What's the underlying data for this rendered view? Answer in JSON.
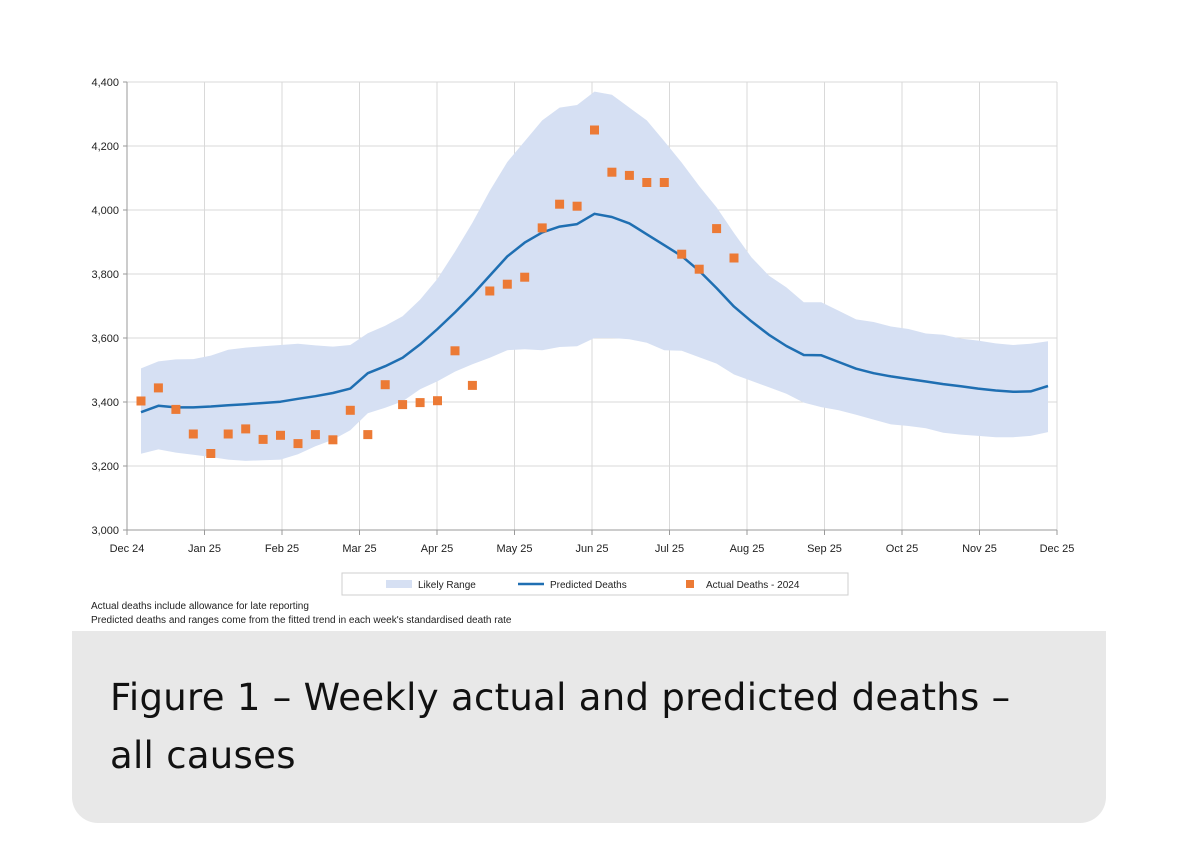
{
  "chart_data": {
    "type": "line",
    "title": "",
    "xlabel": "",
    "ylabel": "",
    "ylim": [
      3000,
      4400
    ],
    "yticks": [
      3000,
      3200,
      3400,
      3600,
      3800,
      4000,
      4200,
      4400
    ],
    "ytick_labels": [
      "3,000",
      "3,200",
      "3,400",
      "3,600",
      "3,800",
      "4,000",
      "4,200",
      "4,400"
    ],
    "xtick_labels": [
      "Dec 24",
      "Jan 25",
      "Feb 25",
      "Mar 25",
      "Apr 25",
      "May 25",
      "Jun 25",
      "Jul 25",
      "Aug 25",
      "Sep 25",
      "Oct 25",
      "Nov 25",
      "Dec 25"
    ],
    "x_unit": "week index (week 0 = first week shown, Dec 24)",
    "grid": true,
    "legend_position": "bottom",
    "legend": [
      "Likely Range",
      "Predicted Deaths",
      "Actual Deaths - 2024"
    ],
    "series": [
      {
        "name": "Predicted Deaths",
        "kind": "line",
        "color": "#1f6fb2",
        "points": [
          [
            0,
            3368
          ],
          [
            1,
            3388
          ],
          [
            2,
            3383
          ],
          [
            3,
            3383
          ],
          [
            4,
            3386
          ],
          [
            5,
            3390
          ],
          [
            6,
            3393
          ],
          [
            7,
            3397
          ],
          [
            8,
            3401
          ],
          [
            9,
            3410
          ],
          [
            10,
            3418
          ],
          [
            11,
            3428
          ],
          [
            12,
            3442
          ],
          [
            13,
            3490
          ],
          [
            14,
            3512
          ],
          [
            15,
            3538
          ],
          [
            16,
            3580
          ],
          [
            17,
            3628
          ],
          [
            18,
            3680
          ],
          [
            19,
            3735
          ],
          [
            20,
            3795
          ],
          [
            21,
            3855
          ],
          [
            22,
            3898
          ],
          [
            23,
            3930
          ],
          [
            24,
            3948
          ],
          [
            25,
            3956
          ],
          [
            26,
            3988
          ],
          [
            27,
            3978
          ],
          [
            28,
            3958
          ],
          [
            29,
            3924
          ],
          [
            30,
            3890
          ],
          [
            31,
            3856
          ],
          [
            32,
            3810
          ],
          [
            33,
            3756
          ],
          [
            34,
            3698
          ],
          [
            35,
            3652
          ],
          [
            36,
            3610
          ],
          [
            37,
            3575
          ],
          [
            38,
            3547
          ],
          [
            39,
            3546
          ],
          [
            40,
            3525
          ],
          [
            41,
            3504
          ],
          [
            42,
            3490
          ],
          [
            43,
            3480
          ],
          [
            44,
            3472
          ],
          [
            45,
            3464
          ],
          [
            46,
            3456
          ],
          [
            47,
            3449
          ],
          [
            48,
            3442
          ],
          [
            49,
            3436
          ],
          [
            50,
            3432
          ],
          [
            51,
            3433
          ],
          [
            52,
            3450
          ]
        ]
      },
      {
        "name": "Actual Deaths - 2024",
        "kind": "marker",
        "color": "#ec7a35",
        "points": [
          [
            0,
            3403
          ],
          [
            1,
            3444
          ],
          [
            2,
            3377
          ],
          [
            3,
            3300
          ],
          [
            4,
            3239
          ],
          [
            5,
            3300
          ],
          [
            6,
            3316
          ],
          [
            7,
            3283
          ],
          [
            8,
            3296
          ],
          [
            9,
            3270
          ],
          [
            10,
            3298
          ],
          [
            11,
            3282
          ],
          [
            12,
            3374
          ],
          [
            13,
            3298
          ],
          [
            14,
            3454
          ],
          [
            15,
            3392
          ],
          [
            16,
            3398
          ],
          [
            17,
            3404
          ],
          [
            18,
            3560
          ],
          [
            19,
            3452
          ],
          [
            20,
            3747
          ],
          [
            21,
            3768
          ],
          [
            22,
            3790
          ],
          [
            23,
            3944
          ],
          [
            24,
            4018
          ],
          [
            25,
            4012
          ],
          [
            26,
            4250
          ],
          [
            27,
            4118
          ],
          [
            28,
            4108
          ],
          [
            29,
            4086
          ],
          [
            30,
            4086
          ],
          [
            31,
            3862
          ],
          [
            32,
            3815
          ],
          [
            33,
            3942
          ],
          [
            34,
            3850
          ]
        ]
      }
    ],
    "band": {
      "name": "Likely Range",
      "color": "#d6e0f3",
      "upper": [
        [
          0,
          3505
        ],
        [
          1,
          3527
        ],
        [
          2,
          3533
        ],
        [
          3,
          3534
        ],
        [
          4,
          3545
        ],
        [
          5,
          3563
        ],
        [
          6,
          3570
        ],
        [
          7,
          3574
        ],
        [
          8,
          3578
        ],
        [
          9,
          3582
        ],
        [
          10,
          3577
        ],
        [
          11,
          3573
        ],
        [
          12,
          3578
        ],
        [
          13,
          3615
        ],
        [
          14,
          3638
        ],
        [
          15,
          3668
        ],
        [
          16,
          3720
        ],
        [
          17,
          3785
        ],
        [
          18,
          3870
        ],
        [
          19,
          3960
        ],
        [
          20,
          4060
        ],
        [
          21,
          4150
        ],
        [
          22,
          4215
        ],
        [
          23,
          4280
        ],
        [
          24,
          4320
        ],
        [
          25,
          4328
        ],
        [
          26,
          4370
        ],
        [
          27,
          4360
        ],
        [
          28,
          4320
        ],
        [
          29,
          4280
        ],
        [
          30,
          4215
        ],
        [
          31,
          4148
        ],
        [
          32,
          4075
        ],
        [
          33,
          4008
        ],
        [
          34,
          3928
        ],
        [
          35,
          3852
        ],
        [
          36,
          3795
        ],
        [
          37,
          3758
        ],
        [
          38,
          3712
        ],
        [
          39,
          3712
        ],
        [
          40,
          3685
        ],
        [
          41,
          3658
        ],
        [
          42,
          3650
        ],
        [
          43,
          3636
        ],
        [
          44,
          3628
        ],
        [
          45,
          3614
        ],
        [
          46,
          3610
        ],
        [
          47,
          3598
        ],
        [
          48,
          3592
        ],
        [
          49,
          3583
        ],
        [
          50,
          3578
        ],
        [
          51,
          3582
        ],
        [
          52,
          3590
        ]
      ],
      "lower": [
        [
          0,
          3238
        ],
        [
          1,
          3252
        ],
        [
          2,
          3242
        ],
        [
          3,
          3235
        ],
        [
          4,
          3228
        ],
        [
          5,
          3220
        ],
        [
          6,
          3216
        ],
        [
          7,
          3218
        ],
        [
          8,
          3220
        ],
        [
          9,
          3237
        ],
        [
          10,
          3262
        ],
        [
          11,
          3282
        ],
        [
          12,
          3312
        ],
        [
          13,
          3365
        ],
        [
          14,
          3382
        ],
        [
          15,
          3402
        ],
        [
          16,
          3440
        ],
        [
          17,
          3465
        ],
        [
          18,
          3495
        ],
        [
          19,
          3518
        ],
        [
          20,
          3538
        ],
        [
          21,
          3562
        ],
        [
          22,
          3565
        ],
        [
          23,
          3562
        ],
        [
          24,
          3572
        ],
        [
          25,
          3574
        ],
        [
          26,
          3600
        ],
        [
          27,
          3600
        ],
        [
          28,
          3596
        ],
        [
          29,
          3585
        ],
        [
          30,
          3562
        ],
        [
          31,
          3560
        ],
        [
          32,
          3540
        ],
        [
          33,
          3520
        ],
        [
          34,
          3486
        ],
        [
          35,
          3466
        ],
        [
          36,
          3446
        ],
        [
          37,
          3426
        ],
        [
          38,
          3398
        ],
        [
          39,
          3384
        ],
        [
          40,
          3374
        ],
        [
          41,
          3360
        ],
        [
          42,
          3345
        ],
        [
          43,
          3330
        ],
        [
          44,
          3325
        ],
        [
          45,
          3318
        ],
        [
          46,
          3304
        ],
        [
          47,
          3298
        ],
        [
          48,
          3294
        ],
        [
          49,
          3290
        ],
        [
          50,
          3290
        ],
        [
          51,
          3294
        ],
        [
          52,
          3306
        ]
      ]
    }
  },
  "notes": [
    "Actual deaths include allowance for late reporting",
    "Predicted deaths and ranges come from the fitted trend in each week's standardised death rate"
  ],
  "caption": "Figure 1 – Weekly actual and predicted deaths – all causes"
}
